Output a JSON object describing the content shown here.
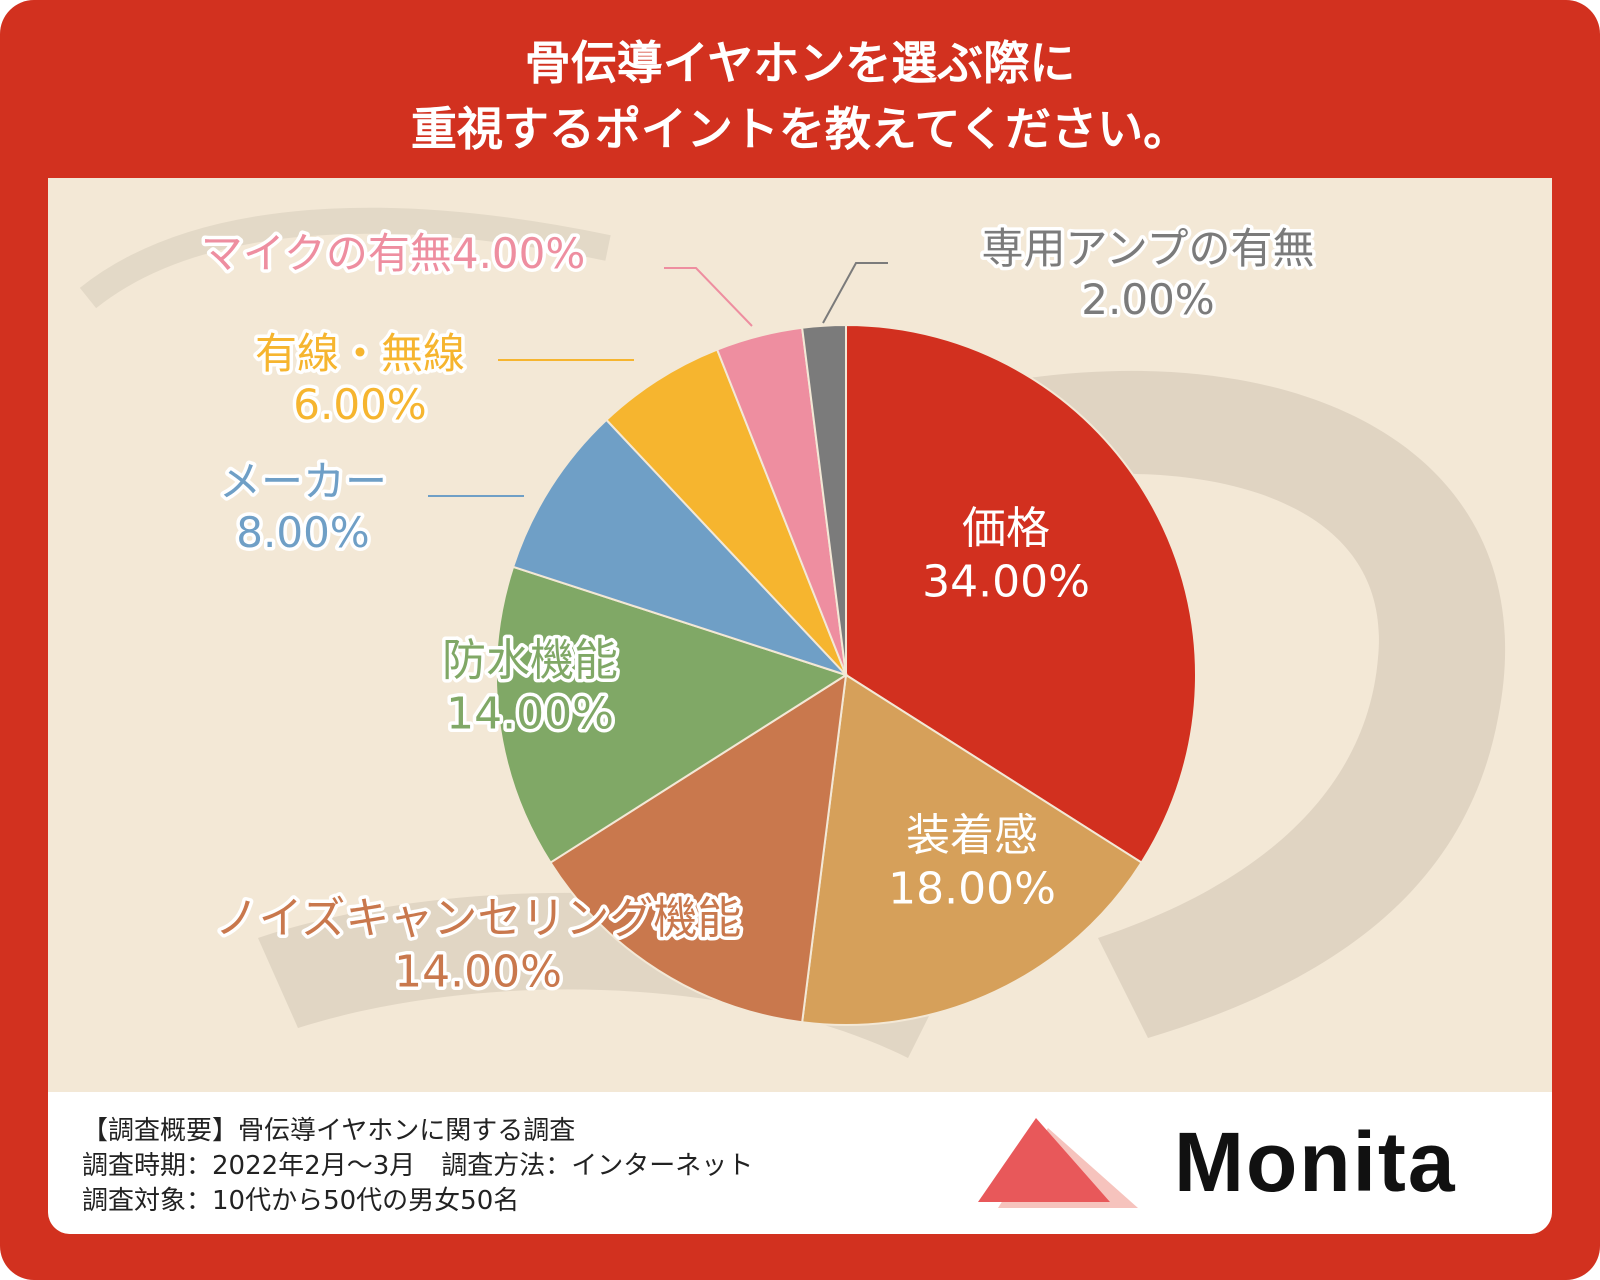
{
  "title": {
    "line1": "骨伝導イヤホンを選ぶ際に",
    "line2": "重視するポイントを教えてください。"
  },
  "colors": {
    "frame": "#d2311f",
    "panel": "#f3e8d6"
  },
  "chart_data": {
    "type": "pie",
    "start_angle_deg": 0,
    "direction": "clockwise",
    "slices": [
      {
        "name": "価格",
        "value": 34.0,
        "value_label": "34.00%",
        "color": "#d2301f"
      },
      {
        "name": "装着感",
        "value": 18.0,
        "value_label": "18.00%",
        "color": "#d6a05a"
      },
      {
        "name": "ノイズキャンセリング機能",
        "value": 14.0,
        "value_label": "14.00%",
        "color": "#c9784d"
      },
      {
        "name": "防水機能",
        "value": 14.0,
        "value_label": "14.00%",
        "color": "#80a866"
      },
      {
        "name": "メーカー",
        "value": 8.0,
        "value_label": "8.00%",
        "color": "#6f9fc6"
      },
      {
        "name": "有線・無線",
        "value": 6.0,
        "value_label": "6.00%",
        "color": "#f6b52f"
      },
      {
        "name": "マイクの有無",
        "value": 4.0,
        "value_label": "4.00%",
        "color": "#ee8ea0"
      },
      {
        "name": "専用アンプの有無",
        "value": 2.0,
        "value_label": "2.00%",
        "color": "#7b7b7b"
      }
    ]
  },
  "survey": {
    "line1": "【調査概要】骨伝導イヤホンに関する調査",
    "line2": "調査時期：2022年2月～3月　調査方法：インターネット",
    "line3": "調査対象：10代から50代の男女50名"
  },
  "logo": {
    "text": "Monita",
    "color_main": "#e8585a",
    "color_light": "#f6c3bd"
  }
}
